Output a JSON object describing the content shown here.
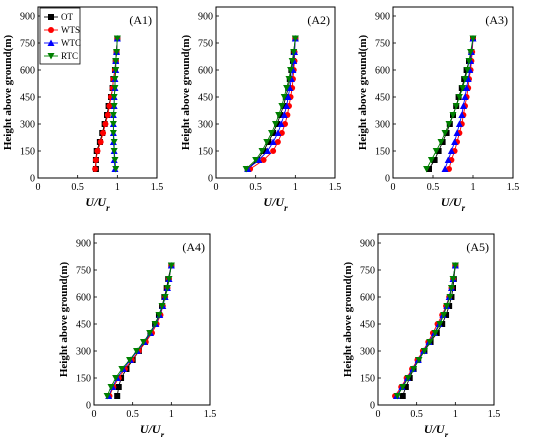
{
  "legend": {
    "placement": "top-left of panel A1",
    "entries": [
      {
        "name": "OT",
        "color": "#000000",
        "marker": "square"
      },
      {
        "name": "WTS",
        "color": "#ff0000",
        "marker": "circle"
      },
      {
        "name": "WTC",
        "color": "#0000ff",
        "marker": "triangle-up"
      },
      {
        "name": "RTC",
        "color": "#008000",
        "marker": "triangle-down"
      }
    ]
  },
  "chart_data": [
    {
      "type": "line",
      "title": "(A1)",
      "xlabel": "U/U",
      "xlabel_sub": "r",
      "ylabel": "Height above ground(m)",
      "xlim": [
        0,
        1.5
      ],
      "ylim": [
        0,
        950
      ],
      "xticks": [
        "0",
        "0.5",
        "1",
        "1.5"
      ],
      "yticks": [
        "0",
        "150",
        "300",
        "450",
        "600",
        "750",
        "900"
      ],
      "grid": false,
      "y": [
        50,
        100,
        150,
        200,
        250,
        300,
        350,
        400,
        450,
        500,
        550,
        600,
        650,
        700,
        775
      ],
      "series": [
        {
          "name": "OT",
          "values": [
            0.73,
            0.73,
            0.74,
            0.78,
            0.81,
            0.84,
            0.87,
            0.89,
            0.92,
            0.94,
            0.95,
            0.97,
            0.98,
            0.99,
            1.0
          ]
        },
        {
          "name": "WTS",
          "values": [
            0.72,
            0.73,
            0.75,
            0.79,
            0.82,
            0.85,
            0.88,
            0.9,
            0.92,
            0.94,
            0.95,
            0.97,
            0.98,
            0.99,
            1.0
          ]
        },
        {
          "name": "WTC",
          "values": [
            0.97,
            0.96,
            0.96,
            0.95,
            0.95,
            0.95,
            0.95,
            0.96,
            0.96,
            0.97,
            0.97,
            0.98,
            0.98,
            0.99,
            1.0
          ]
        },
        {
          "name": "RTC",
          "values": [
            0.98,
            0.97,
            0.96,
            0.96,
            0.95,
            0.95,
            0.95,
            0.96,
            0.96,
            0.97,
            0.97,
            0.98,
            0.98,
            0.99,
            1.0
          ]
        }
      ]
    },
    {
      "type": "line",
      "title": "(A2)",
      "xlabel": "U/U",
      "xlabel_sub": "r",
      "ylabel": "Height above ground(m)",
      "xlim": [
        0,
        1.5
      ],
      "ylim": [
        0,
        950
      ],
      "xticks": [
        "0",
        "0.5",
        "1",
        "1.5"
      ],
      "yticks": [
        "0",
        "150",
        "300",
        "450",
        "600",
        "750",
        "900"
      ],
      "grid": false,
      "y": [
        50,
        100,
        150,
        200,
        250,
        300,
        350,
        400,
        450,
        500,
        550,
        600,
        650,
        700,
        775
      ],
      "series": [
        {
          "name": "OT",
          "values": [
            0.4,
            0.52,
            0.6,
            0.66,
            0.72,
            0.77,
            0.81,
            0.85,
            0.88,
            0.91,
            0.93,
            0.95,
            0.97,
            0.98,
            1.0
          ]
        },
        {
          "name": "WTS",
          "values": [
            0.43,
            0.6,
            0.72,
            0.78,
            0.83,
            0.87,
            0.9,
            0.92,
            0.94,
            0.96,
            0.97,
            0.98,
            0.99,
            0.99,
            1.0
          ]
        },
        {
          "name": "WTC",
          "values": [
            0.4,
            0.54,
            0.65,
            0.72,
            0.78,
            0.82,
            0.86,
            0.89,
            0.91,
            0.93,
            0.95,
            0.97,
            0.98,
            0.99,
            1.0
          ]
        },
        {
          "name": "RTC",
          "values": [
            0.38,
            0.5,
            0.58,
            0.64,
            0.7,
            0.75,
            0.79,
            0.83,
            0.86,
            0.89,
            0.92,
            0.94,
            0.96,
            0.98,
            1.0
          ]
        }
      ]
    },
    {
      "type": "line",
      "title": "(A3)",
      "xlabel": "U/U",
      "xlabel_sub": "r",
      "ylabel": "Height above ground(m)",
      "xlim": [
        0,
        1.5
      ],
      "ylim": [
        0,
        950
      ],
      "xticks": [
        "0",
        "0.5",
        "1",
        "1.5"
      ],
      "yticks": [
        "0",
        "150",
        "300",
        "450",
        "600",
        "750",
        "900"
      ],
      "grid": false,
      "y": [
        50,
        100,
        150,
        200,
        250,
        300,
        350,
        400,
        450,
        500,
        550,
        600,
        650,
        700,
        775
      ],
      "series": [
        {
          "name": "OT",
          "values": [
            0.45,
            0.52,
            0.57,
            0.62,
            0.67,
            0.71,
            0.75,
            0.79,
            0.82,
            0.86,
            0.89,
            0.92,
            0.95,
            0.98,
            1.0
          ]
        },
        {
          "name": "WTS",
          "values": [
            0.7,
            0.73,
            0.77,
            0.8,
            0.83,
            0.86,
            0.88,
            0.9,
            0.92,
            0.94,
            0.95,
            0.97,
            0.98,
            0.99,
            1.0
          ]
        },
        {
          "name": "WTC",
          "values": [
            0.65,
            0.69,
            0.73,
            0.77,
            0.8,
            0.83,
            0.86,
            0.88,
            0.9,
            0.92,
            0.94,
            0.96,
            0.97,
            0.98,
            1.0
          ]
        },
        {
          "name": "RTC",
          "values": [
            0.42,
            0.48,
            0.54,
            0.6,
            0.65,
            0.7,
            0.75,
            0.79,
            0.83,
            0.87,
            0.9,
            0.93,
            0.95,
            0.97,
            1.0
          ]
        }
      ]
    },
    {
      "type": "line",
      "title": "(A4)",
      "xlabel": "U/U",
      "xlabel_sub": "r",
      "ylabel": "Height above ground(m)",
      "xlim": [
        0,
        1.5
      ],
      "ylim": [
        0,
        950
      ],
      "xticks": [
        "0",
        "0.5",
        "1",
        "1.5"
      ],
      "yticks": [
        "0",
        "150",
        "300",
        "450",
        "600",
        "750",
        "900"
      ],
      "grid": false,
      "y": [
        50,
        100,
        150,
        200,
        250,
        300,
        350,
        400,
        450,
        500,
        550,
        600,
        650,
        700,
        775
      ],
      "series": [
        {
          "name": "OT",
          "values": [
            0.3,
            0.32,
            0.35,
            0.42,
            0.5,
            0.58,
            0.66,
            0.73,
            0.79,
            0.84,
            0.88,
            0.91,
            0.94,
            0.96,
            1.0
          ]
        },
        {
          "name": "WTS",
          "values": [
            0.2,
            0.25,
            0.32,
            0.4,
            0.49,
            0.58,
            0.67,
            0.75,
            0.81,
            0.86,
            0.89,
            0.92,
            0.95,
            0.97,
            1.0
          ]
        },
        {
          "name": "WTC",
          "values": [
            0.19,
            0.24,
            0.3,
            0.38,
            0.47,
            0.56,
            0.65,
            0.73,
            0.8,
            0.85,
            0.89,
            0.92,
            0.95,
            0.97,
            1.0
          ]
        },
        {
          "name": "RTC",
          "values": [
            0.17,
            0.22,
            0.28,
            0.36,
            0.46,
            0.55,
            0.64,
            0.72,
            0.79,
            0.84,
            0.88,
            0.92,
            0.95,
            0.97,
            1.0
          ]
        }
      ]
    },
    {
      "type": "line",
      "title": "(A5)",
      "xlabel": "U/U",
      "xlabel_sub": "r",
      "ylabel": "Height above ground(m)",
      "xlim": [
        0,
        1.5
      ],
      "ylim": [
        0,
        950
      ],
      "xticks": [
        "0",
        "0.5",
        "1",
        "1.5"
      ],
      "yticks": [
        "0",
        "150",
        "300",
        "450",
        "600",
        "750",
        "900"
      ],
      "grid": false,
      "y": [
        50,
        100,
        150,
        200,
        250,
        300,
        350,
        400,
        450,
        500,
        550,
        600,
        650,
        700,
        775
      ],
      "series": [
        {
          "name": "OT",
          "values": [
            0.32,
            0.36,
            0.41,
            0.46,
            0.52,
            0.6,
            0.68,
            0.76,
            0.83,
            0.88,
            0.92,
            0.95,
            0.97,
            0.98,
            1.0
          ]
        },
        {
          "name": "WTS",
          "values": [
            0.22,
            0.3,
            0.37,
            0.44,
            0.51,
            0.58,
            0.65,
            0.71,
            0.77,
            0.83,
            0.88,
            0.92,
            0.95,
            0.97,
            1.0
          ]
        },
        {
          "name": "WTC",
          "values": [
            0.24,
            0.31,
            0.38,
            0.45,
            0.52,
            0.59,
            0.66,
            0.73,
            0.79,
            0.84,
            0.89,
            0.92,
            0.95,
            0.97,
            1.0
          ]
        },
        {
          "name": "RTC",
          "values": [
            0.25,
            0.32,
            0.39,
            0.46,
            0.53,
            0.6,
            0.67,
            0.74,
            0.8,
            0.85,
            0.89,
            0.93,
            0.95,
            0.97,
            1.0
          ]
        }
      ]
    }
  ]
}
